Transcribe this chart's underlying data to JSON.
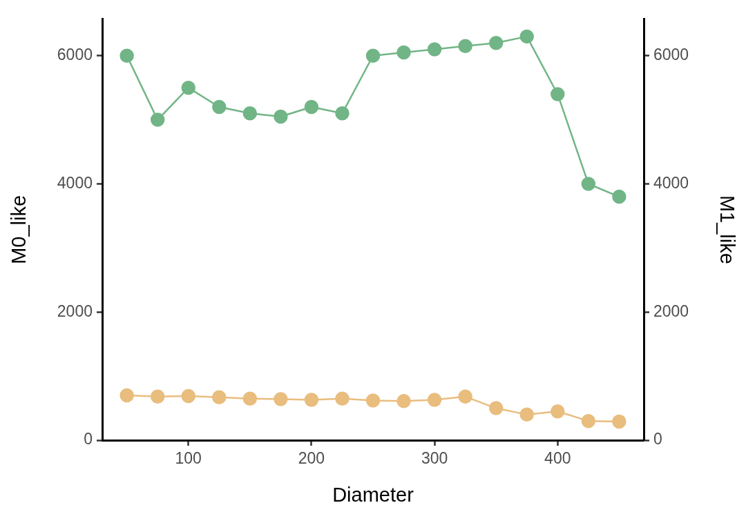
{
  "chart_data": {
    "type": "line",
    "xlabel": "Diameter",
    "ylabel": "M0_like",
    "y2label": "M1_like",
    "x": [
      50,
      75,
      100,
      125,
      150,
      175,
      200,
      225,
      250,
      275,
      300,
      325,
      350,
      375,
      400,
      425,
      450
    ],
    "series": [
      {
        "color": "#71b586",
        "values": [
          6000,
          5000,
          5500,
          5200,
          5100,
          5050,
          5200,
          5100,
          6000,
          6050,
          6100,
          6150,
          6200,
          6300,
          5400,
          4000,
          3800
        ]
      },
      {
        "color": "#e9bd7e",
        "values": [
          700,
          680,
          690,
          670,
          650,
          640,
          630,
          650,
          620,
          610,
          630,
          680,
          500,
          400,
          450,
          300,
          290
        ]
      }
    ],
    "xlim": [
      30,
      470
    ],
    "xticks": [
      100,
      200,
      300,
      400
    ],
    "ylim": [
      0,
      6570
    ],
    "yticks": [
      0,
      2000,
      4000,
      6000
    ],
    "y2lim": [
      0,
      6570
    ],
    "y2ticks": [
      0,
      2000,
      4000,
      6000
    ],
    "grid": false,
    "marker": "circle",
    "line_style": "solid"
  }
}
